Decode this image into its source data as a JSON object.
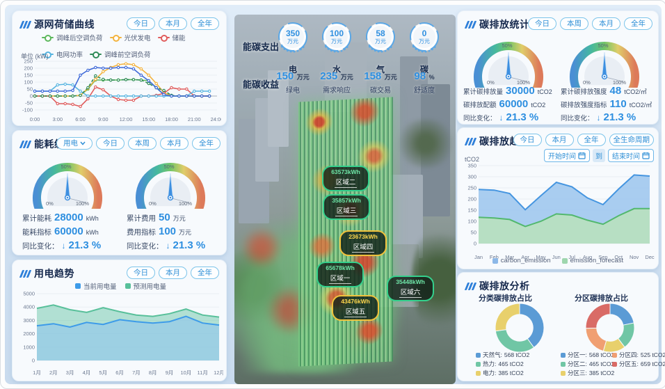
{
  "accent": {
    "blue": "#2e8fe0",
    "panel_title": "#16294d",
    "button": "#2f8fd6"
  },
  "panels": {
    "curve": {
      "title": "源网荷储曲线",
      "buttons": [
        "今日",
        "本月",
        "全年"
      ],
      "unit_label": "单位 (kW)"
    },
    "energy": {
      "title": "能耗统计",
      "dropdown_label": "用电",
      "buttons": [
        "今日",
        "本周",
        "本月",
        "全年"
      ],
      "left": {
        "row1_label": "累计能耗",
        "row1_value": "28000",
        "row1_unit": "kWh",
        "row2_label": "能耗指标",
        "row2_value": "60000",
        "row2_unit": "kWh",
        "yoy_label": "同比变化：",
        "arrow": "↓",
        "yoy_value": "21.3 %"
      },
      "right": {
        "row1_label": "累计费用",
        "row1_value": "50",
        "row1_unit": "万元",
        "row2_label": "费用指标",
        "row2_value": "100",
        "row2_unit": "万元",
        "yoy_label": "同比变化：",
        "arrow": "↓",
        "yoy_value": "21.3 %"
      }
    },
    "usage": {
      "title": "用电趋势",
      "buttons": [
        "今日",
        "本月",
        "全年"
      ]
    },
    "carbon_stats": {
      "title": "碳排放统计",
      "buttons": [
        "今日",
        "本周",
        "本月",
        "全年"
      ],
      "left": {
        "row1_label": "累计碳排放量",
        "row1_value": "30000",
        "row1_unit": "tCO2",
        "row2_label": "碳排放配额",
        "row2_value": "60000",
        "row2_unit": "tCO2",
        "yoy_label": "同比变化：",
        "arrow": "↓",
        "yoy_value": "21.3 %"
      },
      "right": {
        "row1_label": "累计碳排放强度",
        "row1_value": "48",
        "row1_unit": "tCO2/㎡",
        "row2_label": "碳排放强度指标",
        "row2_value": "110",
        "row2_unit": "tCO2/㎡",
        "yoy_label": "同比变化：",
        "arrow": "↓",
        "yoy_value": "21.3 %"
      }
    },
    "carbon_trend": {
      "title": "碳排放趋势",
      "buttons": [
        "今日",
        "本月",
        "全年",
        "全生命周期"
      ],
      "start_label": "开始时间",
      "to_label": "到",
      "end_label": "结束时间",
      "ylabel": "tCO2"
    },
    "carbon_analysis": {
      "title": "碳排放分析",
      "sub_left": "分类碳排放占比",
      "sub_right": "分区碳排放占比"
    }
  },
  "center": {
    "expense": {
      "label": "能碳支出",
      "items": [
        {
          "value": "350",
          "unit": "万元",
          "name": "电"
        },
        {
          "value": "100",
          "unit": "万元",
          "name": "水"
        },
        {
          "value": "58",
          "unit": "万元",
          "name": "气"
        },
        {
          "value": "0",
          "unit": "万元",
          "name": "碳"
        }
      ]
    },
    "income": {
      "label": "能碳收益",
      "items": [
        {
          "value": "150",
          "unit": "万元",
          "name": "绿电"
        },
        {
          "value": "235",
          "unit": "万元",
          "name": "需求响应"
        },
        {
          "value": "158",
          "unit": "万元",
          "name": "碳交易"
        },
        {
          "value": "98",
          "unit": "%",
          "name": "舒适度"
        }
      ]
    },
    "zones": [
      {
        "value": "63573kWh",
        "name": "区域二",
        "type": "green"
      },
      {
        "value": "35857kWh",
        "name": "区域三",
        "type": "green"
      },
      {
        "value": "23673kWh",
        "name": "区域四",
        "type": "yellow"
      },
      {
        "value": "65678kWh",
        "name": "区域一",
        "type": "green"
      },
      {
        "value": "35448kWh",
        "name": "区域六",
        "type": "green"
      },
      {
        "value": "43476kWh",
        "name": "区域五",
        "type": "yellow"
      }
    ]
  },
  "chart_data": [
    {
      "id": "load_curve",
      "type": "line",
      "title": "源网荷储曲线",
      "ylabel": "kW",
      "ylim": [
        -100,
        250
      ],
      "yticks": [
        250,
        200,
        150,
        100,
        50,
        0,
        -50,
        -100
      ],
      "xtick_labels": [
        "0:00",
        "3:00",
        "6:00",
        "9:00",
        "12:00",
        "15:00",
        "18:00",
        "21:00",
        "24:00"
      ],
      "grid": true,
      "series": [
        {
          "name": "调峰后空调负荷",
          "color": "#5cb85c",
          "values": [
            0,
            0,
            0,
            0,
            0,
            0,
            5,
            50,
            115,
            115,
            115,
            115,
            118,
            118,
            115,
            110,
            60,
            10,
            0,
            0,
            0,
            0,
            0,
            0
          ]
        },
        {
          "name": "光伏发电",
          "color": "#f3b33e",
          "values": [
            0,
            0,
            0,
            0,
            0,
            0,
            5,
            55,
            120,
            175,
            205,
            225,
            232,
            225,
            195,
            150,
            90,
            25,
            0,
            0,
            0,
            0,
            0,
            0
          ]
        },
        {
          "name": "储能",
          "color": "#e05c5c",
          "values": [
            0,
            0,
            0,
            -55,
            -55,
            -60,
            -75,
            -20,
            65,
            45,
            0,
            -25,
            -30,
            -30,
            0,
            0,
            5,
            20,
            60,
            50,
            50,
            0,
            0,
            0
          ]
        },
        {
          "name": "电网功率",
          "color": "#56b4e0",
          "values": [
            35,
            35,
            35,
            80,
            85,
            80,
            35,
            0,
            0,
            0,
            0,
            0,
            0,
            0,
            0,
            0,
            0,
            0,
            0,
            0,
            0,
            35,
            35,
            35
          ]
        },
        {
          "name": "调峰前空调负荷",
          "color": "#2e8b57",
          "dash": true,
          "values": [
            0,
            0,
            0,
            0,
            0,
            0,
            5,
            60,
            145,
            120,
            115,
            115,
            118,
            118,
            115,
            90,
            60,
            40,
            5,
            0,
            0,
            0,
            0,
            0
          ]
        },
        {
          "name": "",
          "color": "#3f6ad8",
          "values": [
            35,
            35,
            35,
            35,
            35,
            40,
            150,
            185,
            205,
            200,
            200,
            205,
            205,
            195,
            150,
            110,
            60,
            10,
            0,
            0,
            0,
            0,
            0,
            0
          ]
        }
      ]
    },
    {
      "id": "usage_trend",
      "type": "area",
      "title": "用电趋势",
      "categories": [
        "1月",
        "2月",
        "3月",
        "4月",
        "5月",
        "6月",
        "7月",
        "8月",
        "9月",
        "10月",
        "11月",
        "12月"
      ],
      "ylim": [
        0,
        5000
      ],
      "yticks": [
        5000,
        4000,
        3000,
        2000,
        1000,
        0
      ],
      "series": [
        {
          "name": "当前用电量",
          "color": "#3d9be9",
          "fill": "rgba(140,195,240,0.55)",
          "values": [
            2600,
            2750,
            2500,
            2850,
            2700,
            3050,
            2900,
            2800,
            2900,
            3300,
            2800,
            2650
          ]
        },
        {
          "name": "预测用电量",
          "color": "#58c09a",
          "fill": "rgba(121,203,176,0.55)",
          "values": [
            3900,
            4150,
            3800,
            3600,
            3950,
            3650,
            3400,
            3300,
            3500,
            3850,
            3400,
            3250
          ]
        }
      ]
    },
    {
      "id": "emission_trend",
      "type": "area",
      "title": "碳排放趋势",
      "ylabel": "tCO2",
      "categories": [
        "Jan",
        "Feb",
        "Mar",
        "Apr",
        "May",
        "Jun",
        "Jul",
        "Aug",
        "Sep",
        "Oct",
        "Nov",
        "Dec"
      ],
      "ylim": [
        0,
        350
      ],
      "yticks": [
        350,
        300,
        250,
        200,
        150,
        100,
        50,
        0
      ],
      "legend_position": "bottom",
      "series": [
        {
          "name": "carbon_emission",
          "color": "#4595e0",
          "fill": "rgba(160,200,238,0.9)",
          "values": [
            243,
            240,
            225,
            152,
            215,
            275,
            255,
            205,
            175,
            245,
            308,
            303
          ]
        },
        {
          "name": "emission_forecast",
          "color": "#52b86e",
          "fill": "rgba(183,223,192,0.95)",
          "values": [
            118,
            115,
            108,
            77,
            100,
            133,
            128,
            105,
            87,
            125,
            157,
            157
          ]
        }
      ]
    },
    {
      "id": "category_donut",
      "type": "pie",
      "title": "分类碳排放占比",
      "items": [
        {
          "label": "天然气:",
          "amount": "568 tCO2",
          "value": 568,
          "color": "#5b9bd5"
        },
        {
          "label": "热力:",
          "amount": "465 tCO2",
          "value": 465,
          "color": "#70c6a5"
        },
        {
          "label": "电力:",
          "amount": "385 tCO2",
          "value": 385,
          "color": "#e8d06c"
        }
      ]
    },
    {
      "id": "zone_donut",
      "type": "pie",
      "title": "分区碳排放占比",
      "items": [
        {
          "label": "分区一:",
          "amount": "568 tCO2",
          "value": 568,
          "color": "#5b9bd5"
        },
        {
          "label": "分区二:",
          "amount": "465 tCO2",
          "value": 465,
          "color": "#70c6a5"
        },
        {
          "label": "分区三:",
          "amount": "385 tCO2",
          "value": 385,
          "color": "#e8d06c"
        },
        {
          "label": "分区四:",
          "amount": "525 tCO2",
          "value": 525,
          "color": "#f09f72"
        },
        {
          "label": "分区五:",
          "amount": "659 tCO2",
          "value": 659,
          "color": "#d96b66"
        }
      ]
    },
    {
      "id": "gauge_energy_1",
      "type": "gauge",
      "value_percent": 50,
      "ticks": [
        "0%",
        "50%",
        "100%"
      ]
    },
    {
      "id": "gauge_energy_2",
      "type": "gauge",
      "value_percent": 50,
      "ticks": [
        "0%",
        "50%",
        "100%"
      ]
    },
    {
      "id": "gauge_carbon_1",
      "type": "gauge",
      "value_percent": 50,
      "ticks": [
        "0%",
        "50%",
        "100%"
      ]
    },
    {
      "id": "gauge_carbon_2",
      "type": "gauge",
      "value_percent": 50,
      "ticks": [
        "0%",
        "50%",
        "100%"
      ]
    }
  ]
}
